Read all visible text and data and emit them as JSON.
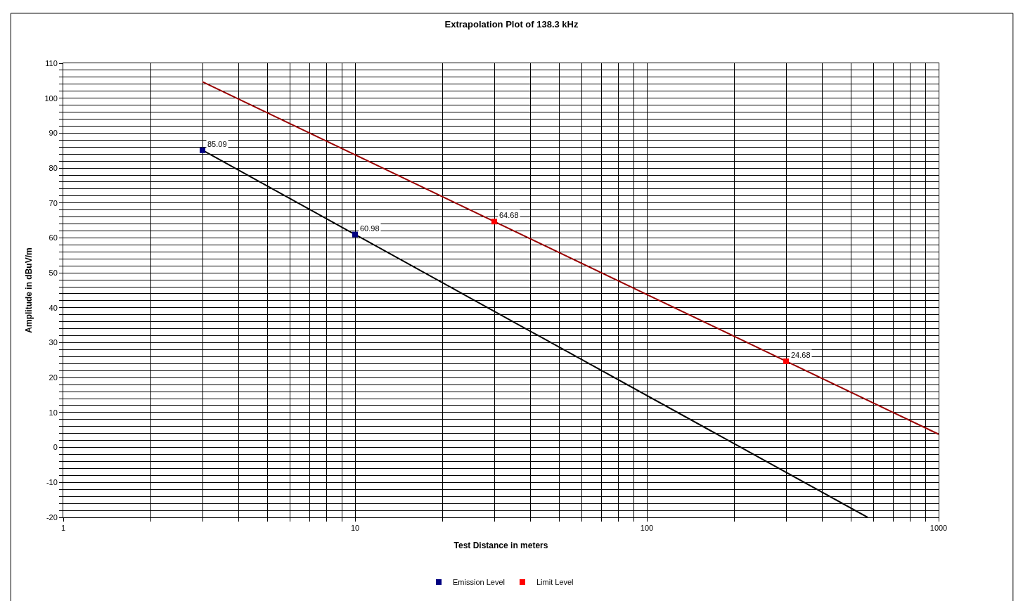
{
  "chart_data": {
    "type": "scatter",
    "title": "Extrapolation Plot of 138.3 kHz",
    "xlabel": "Test Distance in meters",
    "ylabel": "Amplitude in dBuV/m",
    "log": "x",
    "xlim": [
      1,
      1000
    ],
    "ylim": [
      -20,
      110
    ],
    "xticks": [
      1,
      {
        "value": 2,
        "label": null
      },
      {
        "value": 3,
        "label": null
      },
      {
        "value": 4,
        "label": null
      },
      {
        "value": 5,
        "label": null
      },
      {
        "value": 6,
        "label": null
      },
      {
        "value": 7,
        "label": null
      },
      {
        "value": 8,
        "label": null
      },
      {
        "value": 9,
        "label": null
      },
      10,
      {
        "value": 20,
        "label": null
      },
      {
        "value": 30,
        "label": null
      },
      {
        "value": 40,
        "label": null
      },
      {
        "value": 50,
        "label": null
      },
      {
        "value": 60,
        "label": null
      },
      {
        "value": 70,
        "label": null
      },
      {
        "value": 80,
        "label": null
      },
      {
        "value": 90,
        "label": null
      },
      100,
      {
        "value": 200,
        "label": null
      },
      {
        "value": 300,
        "label": null
      },
      {
        "value": 400,
        "label": null
      },
      {
        "value": 500,
        "label": null
      },
      {
        "value": 600,
        "label": null
      },
      {
        "value": 700,
        "label": null
      },
      {
        "value": 800,
        "label": null
      },
      {
        "value": 900,
        "label": null
      },
      1000
    ],
    "yticks": [
      -20,
      {
        "value": -18,
        "label": null
      },
      {
        "value": -16,
        "label": null
      },
      {
        "value": -14,
        "label": null
      },
      {
        "value": -12,
        "label": null
      },
      -10,
      {
        "value": -8,
        "label": null
      },
      {
        "value": -6,
        "label": null
      },
      {
        "value": -4,
        "label": null
      },
      {
        "value": -2,
        "label": null
      },
      0,
      {
        "value": 2,
        "label": null
      },
      {
        "value": 4,
        "label": null
      },
      {
        "value": 6,
        "label": null
      },
      {
        "value": 8,
        "label": null
      },
      10,
      {
        "value": 12,
        "label": null
      },
      {
        "value": 14,
        "label": null
      },
      {
        "value": 16,
        "label": null
      },
      {
        "value": 18,
        "label": null
      },
      20,
      {
        "value": 22,
        "label": null
      },
      {
        "value": 24,
        "label": null
      },
      {
        "value": 26,
        "label": null
      },
      {
        "value": 28,
        "label": null
      },
      30,
      {
        "value": 32,
        "label": null
      },
      {
        "value": 34,
        "label": null
      },
      {
        "value": 36,
        "label": null
      },
      {
        "value": 38,
        "label": null
      },
      40,
      {
        "value": 42,
        "label": null
      },
      {
        "value": 44,
        "label": null
      },
      {
        "value": 46,
        "label": null
      },
      {
        "value": 48,
        "label": null
      },
      50,
      {
        "value": 52,
        "label": null
      },
      {
        "value": 54,
        "label": null
      },
      {
        "value": 56,
        "label": null
      },
      {
        "value": 58,
        "label": null
      },
      60,
      {
        "value": 62,
        "label": null
      },
      {
        "value": 64,
        "label": null
      },
      {
        "value": 66,
        "label": null
      },
      {
        "value": 68,
        "label": null
      },
      70,
      {
        "value": 72,
        "label": null
      },
      {
        "value": 74,
        "label": null
      },
      {
        "value": 76,
        "label": null
      },
      {
        "value": 78,
        "label": null
      },
      80,
      {
        "value": 82,
        "label": null
      },
      {
        "value": 84,
        "label": null
      },
      {
        "value": 86,
        "label": null
      },
      {
        "value": 88,
        "label": null
      },
      90,
      {
        "value": 92,
        "label": null
      },
      {
        "value": 94,
        "label": null
      },
      {
        "value": 96,
        "label": null
      },
      {
        "value": 98,
        "label": null
      },
      100,
      {
        "value": 102,
        "label": null
      },
      {
        "value": 104,
        "label": null
      },
      {
        "value": 106,
        "label": null
      },
      {
        "value": 108,
        "label": null
      },
      110
    ],
    "grid": true,
    "legend": "bottom",
    "marker": "square",
    "series": [
      {
        "type": "line",
        "marker": "none",
        "color": "#000000",
        "x": [
          3,
          571
        ],
        "values": [
          85.1,
          -20
        ]
      },
      {
        "type": "line",
        "marker": "none",
        "color": "#990000",
        "x": [
          3,
          1000
        ],
        "values": [
          104.7,
          3.8
        ]
      },
      {
        "name": "Emission Level",
        "color": "#000080",
        "x": [
          3,
          10
        ],
        "values": [
          85.09,
          60.98
        ],
        "value_labels": [
          "85.09",
          "60.98"
        ]
      },
      {
        "name": "Limit Level",
        "color": "#ff0000",
        "x": [
          30,
          300
        ],
        "values": [
          64.68,
          24.68
        ],
        "value_labels": [
          "64.68",
          "24.68"
        ]
      }
    ]
  }
}
